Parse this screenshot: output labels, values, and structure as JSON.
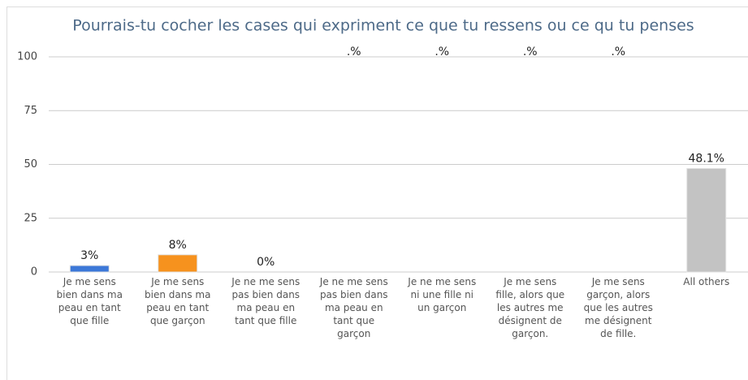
{
  "chart_data": {
    "type": "bar",
    "title": "Pourrais-tu cocher les cases qui expriment ce que tu ressens ou ce qu tu penses",
    "categories": [
      "Je me sens bien dans ma peau en tant que fille",
      "Je me sens bien dans ma peau en tant que garçon",
      "Je ne me sens pas bien dans ma peau en tant que fille",
      "Je ne me sens pas bien dans ma peau en tant que garçon",
      "Je ne me sens ni une fille ni un garçon",
      "Je me sens fille, alors que les autres me désignent de garçon.",
      "Je me sens garçon, alors que les autres me désignent de fille.",
      "All others"
    ],
    "values": [
      3,
      8,
      0,
      null,
      null,
      null,
      null,
      48.1
    ],
    "value_labels": [
      "3%",
      "8%",
      "0%",
      ".%",
      ".%",
      ".%",
      ".%",
      "48.1%"
    ],
    "colors": [
      "#3c78d8",
      "#f6921e",
      "#3c78d8",
      "#3c78d8",
      "#3c78d8",
      "#3c78d8",
      "#3c78d8",
      "#c3c3c3"
    ],
    "ylim": [
      0,
      100
    ],
    "yticks": [
      0,
      25,
      50,
      75,
      100
    ],
    "grid": true
  }
}
